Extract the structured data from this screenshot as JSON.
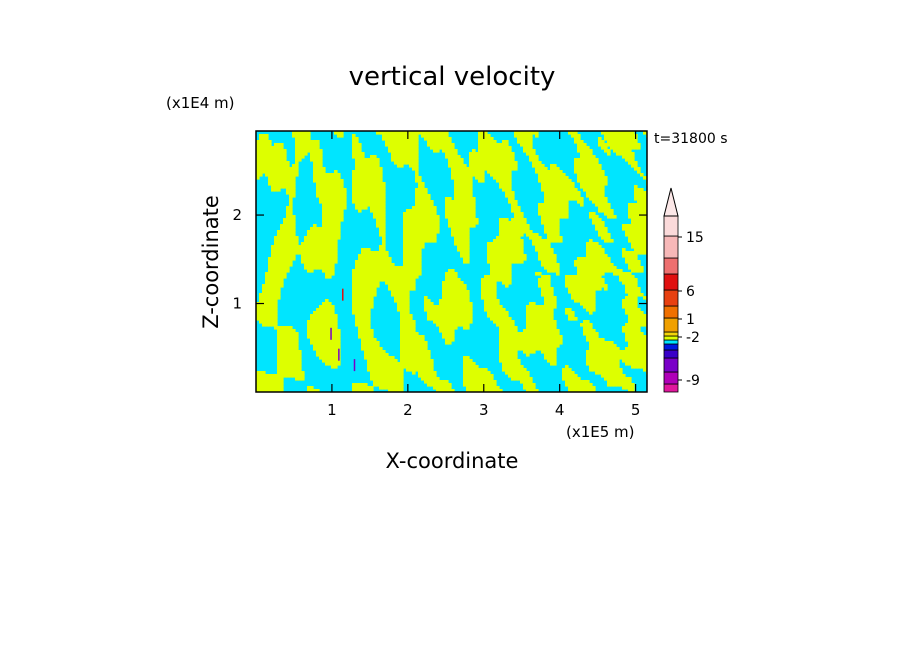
{
  "chart_data": {
    "type": "heatmap",
    "title": "vertical velocity",
    "xlabel": "X-coordinate",
    "ylabel": "Z-coordinate",
    "x_unit_label": "(x1E5 m)",
    "y_unit_label": "(x1E4 m)",
    "time_label": "t=31800 s",
    "xlim": [
      0,
      5.15
    ],
    "ylim": [
      0,
      2.95
    ],
    "x_ticks": [
      1,
      2,
      3,
      4,
      5
    ],
    "y_ticks": [
      1,
      2
    ],
    "x_tick_labels": [
      "1",
      "2",
      "3",
      "4",
      "5"
    ],
    "y_tick_labels": [
      "1",
      "2"
    ],
    "field": {
      "dominant_positive_color": "#ddff00",
      "dominant_negative_color": "#00e5ff",
      "description_levels": [
        "slightly positive",
        "slightly negative"
      ]
    },
    "colorbar": {
      "levels": [
        "-9",
        "-2",
        "1",
        "6",
        "15"
      ],
      "colors_bottom_to_top": [
        "#e0179d",
        "#b000b8",
        "#7a00c8",
        "#3a00c8",
        "#0018e0",
        "#00e5ff",
        "#ddff00",
        "#f2d60a",
        "#f0a000",
        "#f07000",
        "#e84010",
        "#e01010",
        "#ee7070",
        "#f7b8b8",
        "#fbdada"
      ]
    },
    "colors": {
      "frame": "#000000",
      "positive": "#ddff00",
      "negative": "#00e5ff",
      "strong_negative": "#7a00c8",
      "strong_positive": "#e01010"
    }
  }
}
